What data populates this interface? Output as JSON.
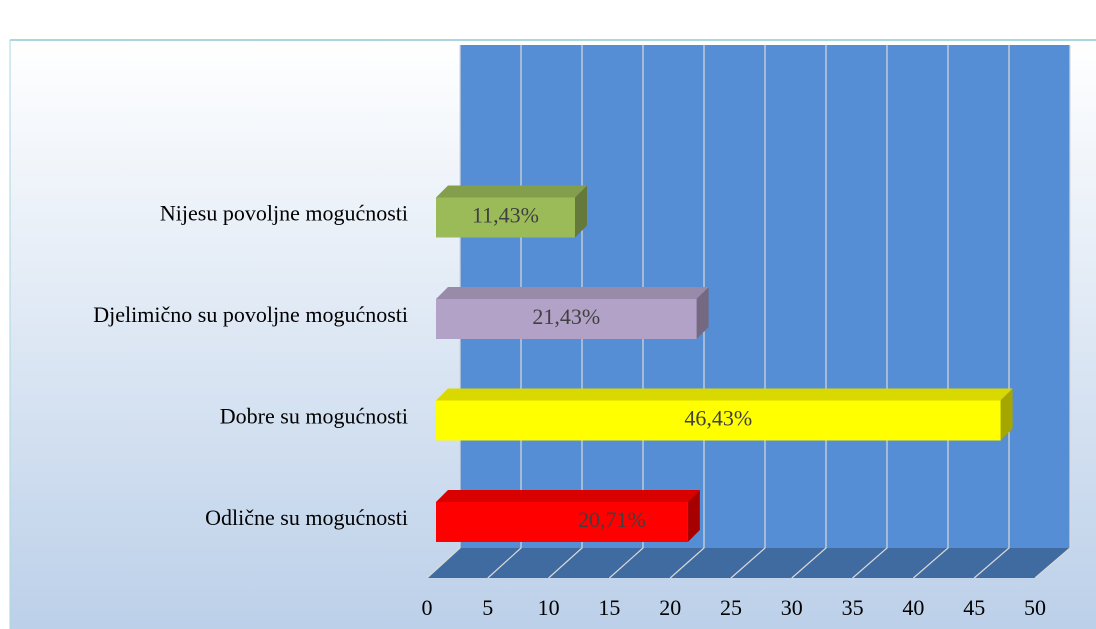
{
  "chart_data": {
    "type": "bar3d_horizontal",
    "categories": [
      "Odlične su mogućnosti",
      "Dobre su mogućnosti",
      "Djelimično su povoljne mogućnosti",
      "Nijesu povoljne mogućnosti"
    ],
    "values": [
      20.71,
      46.43,
      21.43,
      11.43
    ],
    "value_labels": [
      "20,71%",
      "46,43%",
      "21,43%",
      "11,43%"
    ],
    "colors": [
      "#ff0000",
      "#ffff00",
      "#b3a2c7",
      "#9bbb59"
    ],
    "wall_color": "#558ed5",
    "xlim": [
      0,
      50
    ],
    "xticks": [
      0,
      5,
      10,
      15,
      20,
      25,
      30,
      35,
      40,
      45,
      50
    ],
    "grid": true
  }
}
